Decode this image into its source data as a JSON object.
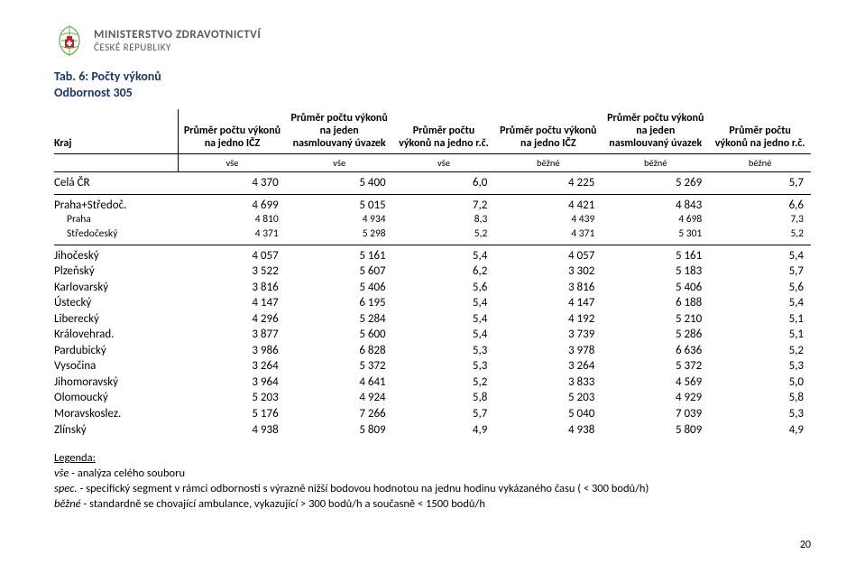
{
  "logo": {
    "line1": "MINISTERSTVO ZDRAVOTNICTVÍ",
    "line2": "ČESKÉ REPUBLIKY",
    "colors": {
      "green": "#6aa842",
      "red": "#c22127",
      "text": "#5a5a5a"
    }
  },
  "title": {
    "line1": "Tab. 6: Počty výkonů",
    "line2": "Odbornost 305",
    "color": "#1f3763"
  },
  "table": {
    "header_region": "Kraj",
    "headers": [
      "Průměr počtu výkonů na jedno IČZ",
      "Průměr počtu výkonů na jeden nasmlouvaný úvazek",
      "Průměr počtu výkonů na jedno r.č.",
      "Průměr počtu výkonů na jedno IČZ",
      "Průměr počtu výkonů na jeden nasmlouvaný úvazek",
      "Průměr počtu výkonů na jedno r.č."
    ],
    "subheaders": [
      "vše",
      "vše",
      "vše",
      "běžné",
      "běžné",
      "běžné"
    ],
    "sections": [
      {
        "rows": [
          {
            "region": "Celá ČR",
            "sub": false,
            "v": [
              "4 370",
              "5 400",
              "6,0",
              "4 225",
              "5 269",
              "5,7"
            ]
          }
        ]
      },
      {
        "rows": [
          {
            "region": "Praha+Středoč.",
            "sub": false,
            "v": [
              "4 699",
              "5 015",
              "7,2",
              "4 421",
              "4 843",
              "6,6"
            ]
          },
          {
            "region": "Praha",
            "sub": true,
            "v": [
              "4 810",
              "4 934",
              "8,3",
              "4 439",
              "4 698",
              "7,3"
            ]
          },
          {
            "region": "Středočeský",
            "sub": true,
            "v": [
              "4 371",
              "5 298",
              "5,2",
              "4 371",
              "5 301",
              "5,2"
            ]
          }
        ]
      },
      {
        "rows": [
          {
            "region": "Jihočeský",
            "sub": false,
            "v": [
              "4 057",
              "5 161",
              "5,4",
              "4 057",
              "5 161",
              "5,4"
            ]
          },
          {
            "region": "Plzeňský",
            "sub": false,
            "v": [
              "3 522",
              "5 607",
              "6,2",
              "3 302",
              "5 183",
              "5,7"
            ]
          },
          {
            "region": "Karlovarský",
            "sub": false,
            "v": [
              "3 816",
              "5 406",
              "5,6",
              "3 816",
              "5 406",
              "5,6"
            ]
          },
          {
            "region": "Ústecký",
            "sub": false,
            "v": [
              "4 147",
              "6 195",
              "5,4",
              "4 147",
              "6 188",
              "5,4"
            ]
          },
          {
            "region": "Liberecký",
            "sub": false,
            "v": [
              "4 296",
              "5 284",
              "5,4",
              "4 192",
              "5 210",
              "5,1"
            ]
          },
          {
            "region": "Královehrad.",
            "sub": false,
            "v": [
              "3 877",
              "5 600",
              "5,4",
              "3 739",
              "5 286",
              "5,1"
            ]
          },
          {
            "region": "Pardubický",
            "sub": false,
            "v": [
              "3 986",
              "6 828",
              "5,3",
              "3 978",
              "6 636",
              "5,2"
            ]
          },
          {
            "region": "Vysočina",
            "sub": false,
            "v": [
              "3 264",
              "5 372",
              "5,3",
              "3 264",
              "5 372",
              "5,3"
            ]
          },
          {
            "region": "Jihomoravský",
            "sub": false,
            "v": [
              "3 964",
              "4 641",
              "5,2",
              "3 833",
              "4 569",
              "5,0"
            ]
          },
          {
            "region": "Olomoucký",
            "sub": false,
            "v": [
              "5 203",
              "4 924",
              "5,8",
              "5 203",
              "4 929",
              "5,8"
            ]
          },
          {
            "region": "Moravskoslez.",
            "sub": false,
            "v": [
              "5 176",
              "7 266",
              "5,7",
              "5 040",
              "7 039",
              "5,3"
            ]
          },
          {
            "region": "Zlínský",
            "sub": false,
            "v": [
              "4 938",
              "5 809",
              "4,9",
              "4 938",
              "5 809",
              "4,9"
            ]
          }
        ]
      }
    ]
  },
  "legend": {
    "heading": "Legenda:",
    "lines": [
      {
        "tag": "vše",
        "text": " - analýza celého souboru"
      },
      {
        "tag": "spec.",
        "text": " - specifický segment v rámci odbornosti s výrazně nižší bodovou hodnotou na jednu hodinu vykázaného času ( < 300 bodů/h)"
      },
      {
        "tag": "běžné",
        "text": " - standardně se chovající ambulance, vykazující > 300 bodů/h a současně < 1500 bodů/h"
      }
    ]
  },
  "page_number": "20"
}
